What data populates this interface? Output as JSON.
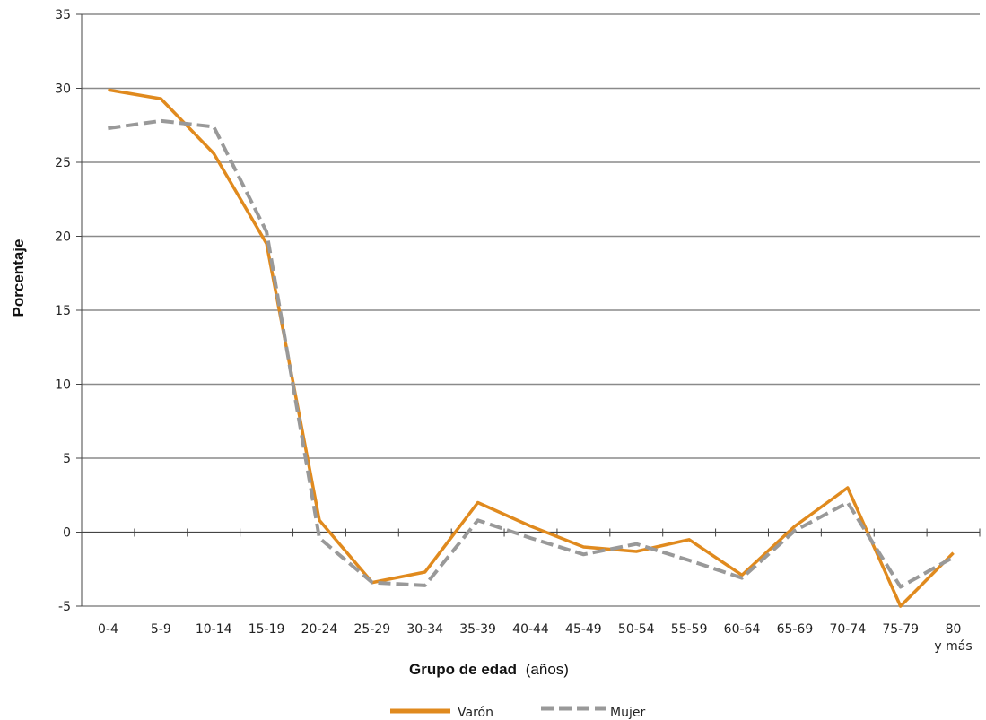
{
  "chart_data": {
    "type": "line",
    "xlabel_bold": "Grupo de edad",
    "xlabel_unit": "(años)",
    "ylabel": "Porcentaje",
    "ylim": [
      -5,
      35
    ],
    "yticks": [
      -5,
      0,
      5,
      10,
      15,
      20,
      25,
      30,
      35
    ],
    "grid": true,
    "legend_position": "bottom",
    "categories": [
      "0-4",
      "5-9",
      "10-14",
      "15-19",
      "20-24",
      "25-29",
      "30-34",
      "35-39",
      "40-44",
      "45-49",
      "50-54",
      "55-59",
      "60-64",
      "65-69",
      "70-74",
      "75-79",
      "80 y más"
    ],
    "category_labels": [
      [
        "0-4"
      ],
      [
        "5-9"
      ],
      [
        "10-14"
      ],
      [
        "15-19"
      ],
      [
        "20-24"
      ],
      [
        "25-29"
      ],
      [
        "30-34"
      ],
      [
        "35-39"
      ],
      [
        "40-44"
      ],
      [
        "45-49"
      ],
      [
        "50-54"
      ],
      [
        "55-59"
      ],
      [
        "60-64"
      ],
      [
        "65-69"
      ],
      [
        "70-74"
      ],
      [
        "75-79"
      ],
      [
        "80",
        "y más"
      ]
    ],
    "series": [
      {
        "name": "Varón",
        "color": "#E08A1E",
        "style": "solid",
        "values": [
          29.9,
          29.3,
          25.6,
          19.5,
          0.8,
          -3.4,
          -2.7,
          2.0,
          0.4,
          -1.0,
          -1.3,
          -0.5,
          -2.9,
          0.4,
          3.0,
          -5.0,
          -1.4
        ]
      },
      {
        "name": "Mujer",
        "color": "#999999",
        "style": "dashed",
        "values": [
          27.3,
          27.8,
          27.4,
          20.3,
          -0.4,
          -3.4,
          -3.6,
          0.8,
          -0.4,
          -1.5,
          -0.8,
          -1.9,
          -3.1,
          0.1,
          2.0,
          -3.7,
          -1.7
        ]
      }
    ]
  }
}
